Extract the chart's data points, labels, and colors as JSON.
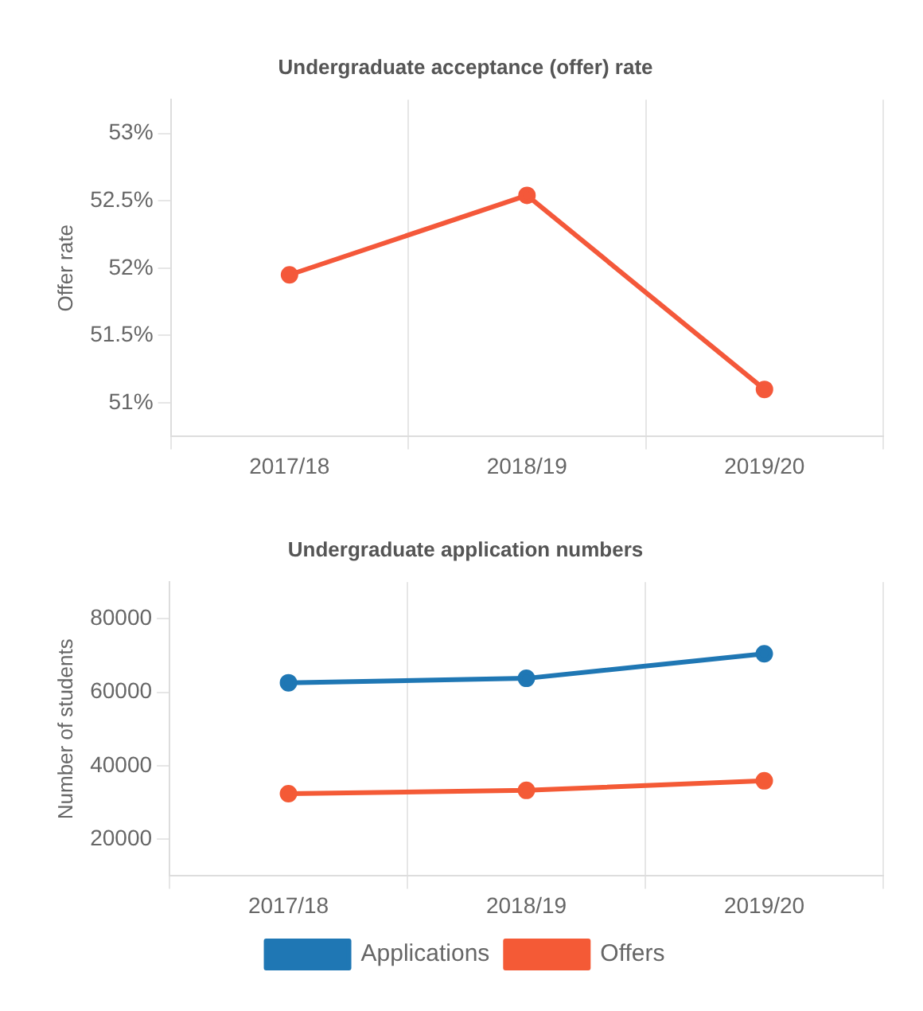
{
  "chart_data": [
    {
      "type": "line",
      "title": "Undergraduate acceptance (offer) rate",
      "ylabel": "Offer rate",
      "categories": [
        "2017/18",
        "2018/19",
        "2019/20"
      ],
      "series": [
        {
          "color": "#f4583a",
          "values": [
            51.95,
            52.54,
            51.1
          ]
        }
      ],
      "ylim": [
        50.75,
        53.25
      ],
      "yticks": [
        {
          "value": 51,
          "label": "51%"
        },
        {
          "value": 51.5,
          "label": "51.5%"
        },
        {
          "value": 52,
          "label": "52%"
        },
        {
          "value": 52.5,
          "label": "52.5%"
        },
        {
          "value": 53,
          "label": "53%"
        }
      ],
      "grid": "x",
      "legend": false,
      "marker": "circle",
      "line_style": "solid"
    },
    {
      "type": "line",
      "title": "Undergraduate application numbers",
      "ylabel": "Number of students",
      "categories": [
        "2017/18",
        "2018/19",
        "2019/20"
      ],
      "series": [
        {
          "name": "Applications",
          "color": "#1f77b4",
          "values": [
            62600,
            63800,
            70500
          ]
        },
        {
          "name": "Offers",
          "color": "#f45a36",
          "values": [
            32400,
            33300,
            35900
          ]
        }
      ],
      "ylim": [
        10000,
        90000
      ],
      "yticks": [
        20000,
        40000,
        60000,
        80000
      ],
      "grid": "x",
      "legend": "bottom",
      "marker": "circle",
      "line_style": "solid"
    }
  ]
}
